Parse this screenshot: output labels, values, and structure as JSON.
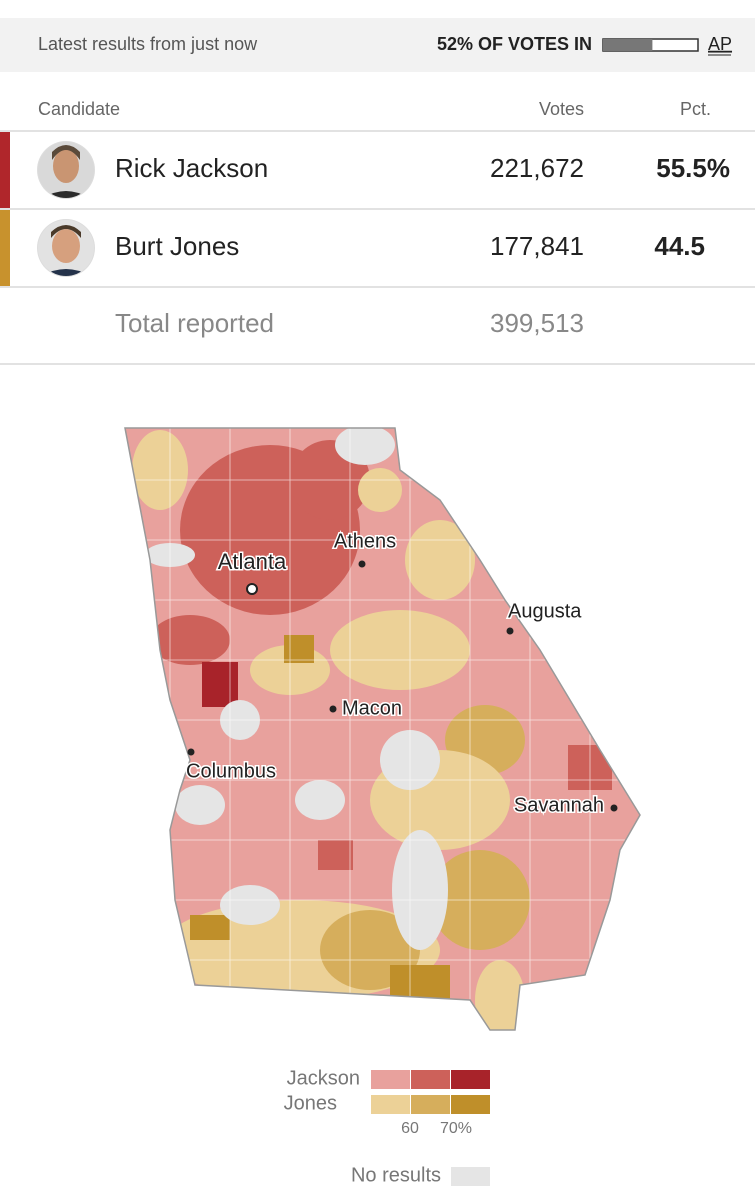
{
  "header": {
    "status": "Latest results from just now",
    "votes_in": {
      "value": 52,
      "label": "52% OF VOTES IN"
    },
    "source": "AP"
  },
  "table": {
    "columns": [
      "Candidate",
      "Votes",
      "Pct."
    ],
    "rows": [
      [
        "Rick Jackson",
        "221,672",
        "55.5%"
      ],
      [
        "Burt Jones",
        "177,841",
        "44.5"
      ]
    ],
    "total": [
      "Total reported",
      "399,513"
    ]
  },
  "map": {
    "cities": [
      "Atlanta",
      "Athens",
      "Augusta",
      "Macon",
      "Columbus",
      "Savannah"
    ],
    "legend": {
      "candidates": [
        "Jackson",
        "Jones"
      ],
      "scale": [
        "60",
        "70%"
      ],
      "no_results": "No results"
    }
  }
}
